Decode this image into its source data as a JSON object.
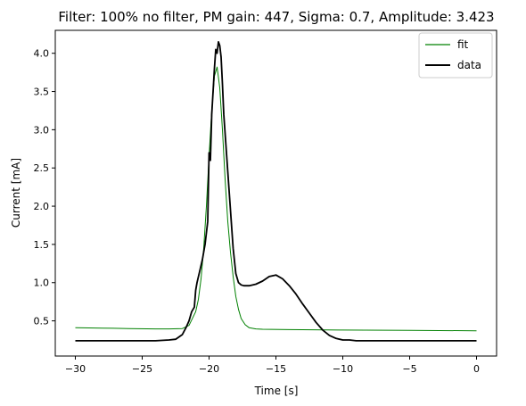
{
  "chart_data": {
    "type": "line",
    "title": "Filter: 100% no filter, PM gain: 447, Sigma: 0.7, Amplitude: 3.423",
    "xlabel": "Time [s]",
    "ylabel": "Current [mA]",
    "xlim": [
      -31.5,
      1.5
    ],
    "ylim": [
      0.04,
      4.3
    ],
    "xticks": [
      -30,
      -25,
      -20,
      -15,
      -10,
      -5,
      0
    ],
    "xtick_labels": [
      "−30",
      "−25",
      "−20",
      "−15",
      "−10",
      "−5",
      "0"
    ],
    "yticks": [
      0.5,
      1.0,
      1.5,
      2.0,
      2.5,
      3.0,
      3.5,
      4.0
    ],
    "ytick_labels": [
      "0.5",
      "1.0",
      "1.5",
      "2.0",
      "2.5",
      "3.0",
      "3.5",
      "4.0"
    ],
    "grid": false,
    "legend_position": "top-right",
    "series": [
      {
        "name": "fit",
        "color": "#008000",
        "x": [
          -30,
          -28,
          -26,
          -24,
          -23,
          -22,
          -21.5,
          -21,
          -20.8,
          -20.6,
          -20.4,
          -20.2,
          -20,
          -19.8,
          -19.6,
          -19.4,
          -19.2,
          -19,
          -18.8,
          -18.6,
          -18.4,
          -18.2,
          -18,
          -17.8,
          -17.6,
          -17.3,
          -17,
          -16.5,
          -16,
          -14,
          -10,
          -5,
          0
        ],
        "y": [
          0.41,
          0.405,
          0.4,
          0.395,
          0.395,
          0.4,
          0.44,
          0.62,
          0.78,
          1.05,
          1.45,
          2.0,
          2.65,
          3.25,
          3.7,
          3.82,
          3.55,
          3.0,
          2.35,
          1.8,
          1.4,
          1.08,
          0.82,
          0.65,
          0.53,
          0.45,
          0.41,
          0.395,
          0.39,
          0.385,
          0.38,
          0.375,
          0.37
        ]
      },
      {
        "name": "data",
        "color": "#000000",
        "x": [
          -30,
          -28,
          -26,
          -24,
          -23,
          -22.5,
          -22,
          -21.7,
          -21.5,
          -21.3,
          -21.1,
          -21,
          -20.9,
          -20.7,
          -20.5,
          -20.3,
          -20.1,
          -20,
          -19.9,
          -19.8,
          -19.7,
          -19.6,
          -19.5,
          -19.4,
          -19.3,
          -19.2,
          -19.1,
          -19,
          -18.9,
          -18.8,
          -18.6,
          -18.4,
          -18.2,
          -18,
          -17.8,
          -17.6,
          -17.4,
          -17,
          -16.5,
          -16,
          -15.5,
          -15,
          -14.5,
          -14,
          -13.5,
          -13,
          -12.5,
          -12,
          -11.5,
          -11,
          -10.5,
          -10,
          -9.5,
          -9,
          -5,
          0
        ],
        "y": [
          0.24,
          0.24,
          0.24,
          0.24,
          0.25,
          0.26,
          0.32,
          0.42,
          0.5,
          0.62,
          0.68,
          0.9,
          1.0,
          1.15,
          1.3,
          1.5,
          1.8,
          2.7,
          2.6,
          3.2,
          3.5,
          3.8,
          4.05,
          4.0,
          4.15,
          4.1,
          3.95,
          3.6,
          3.2,
          2.95,
          2.45,
          1.95,
          1.45,
          1.12,
          1.0,
          0.97,
          0.96,
          0.96,
          0.98,
          1.02,
          1.08,
          1.1,
          1.05,
          0.96,
          0.85,
          0.72,
          0.6,
          0.48,
          0.38,
          0.31,
          0.27,
          0.25,
          0.25,
          0.24,
          0.24,
          0.24
        ]
      }
    ]
  }
}
